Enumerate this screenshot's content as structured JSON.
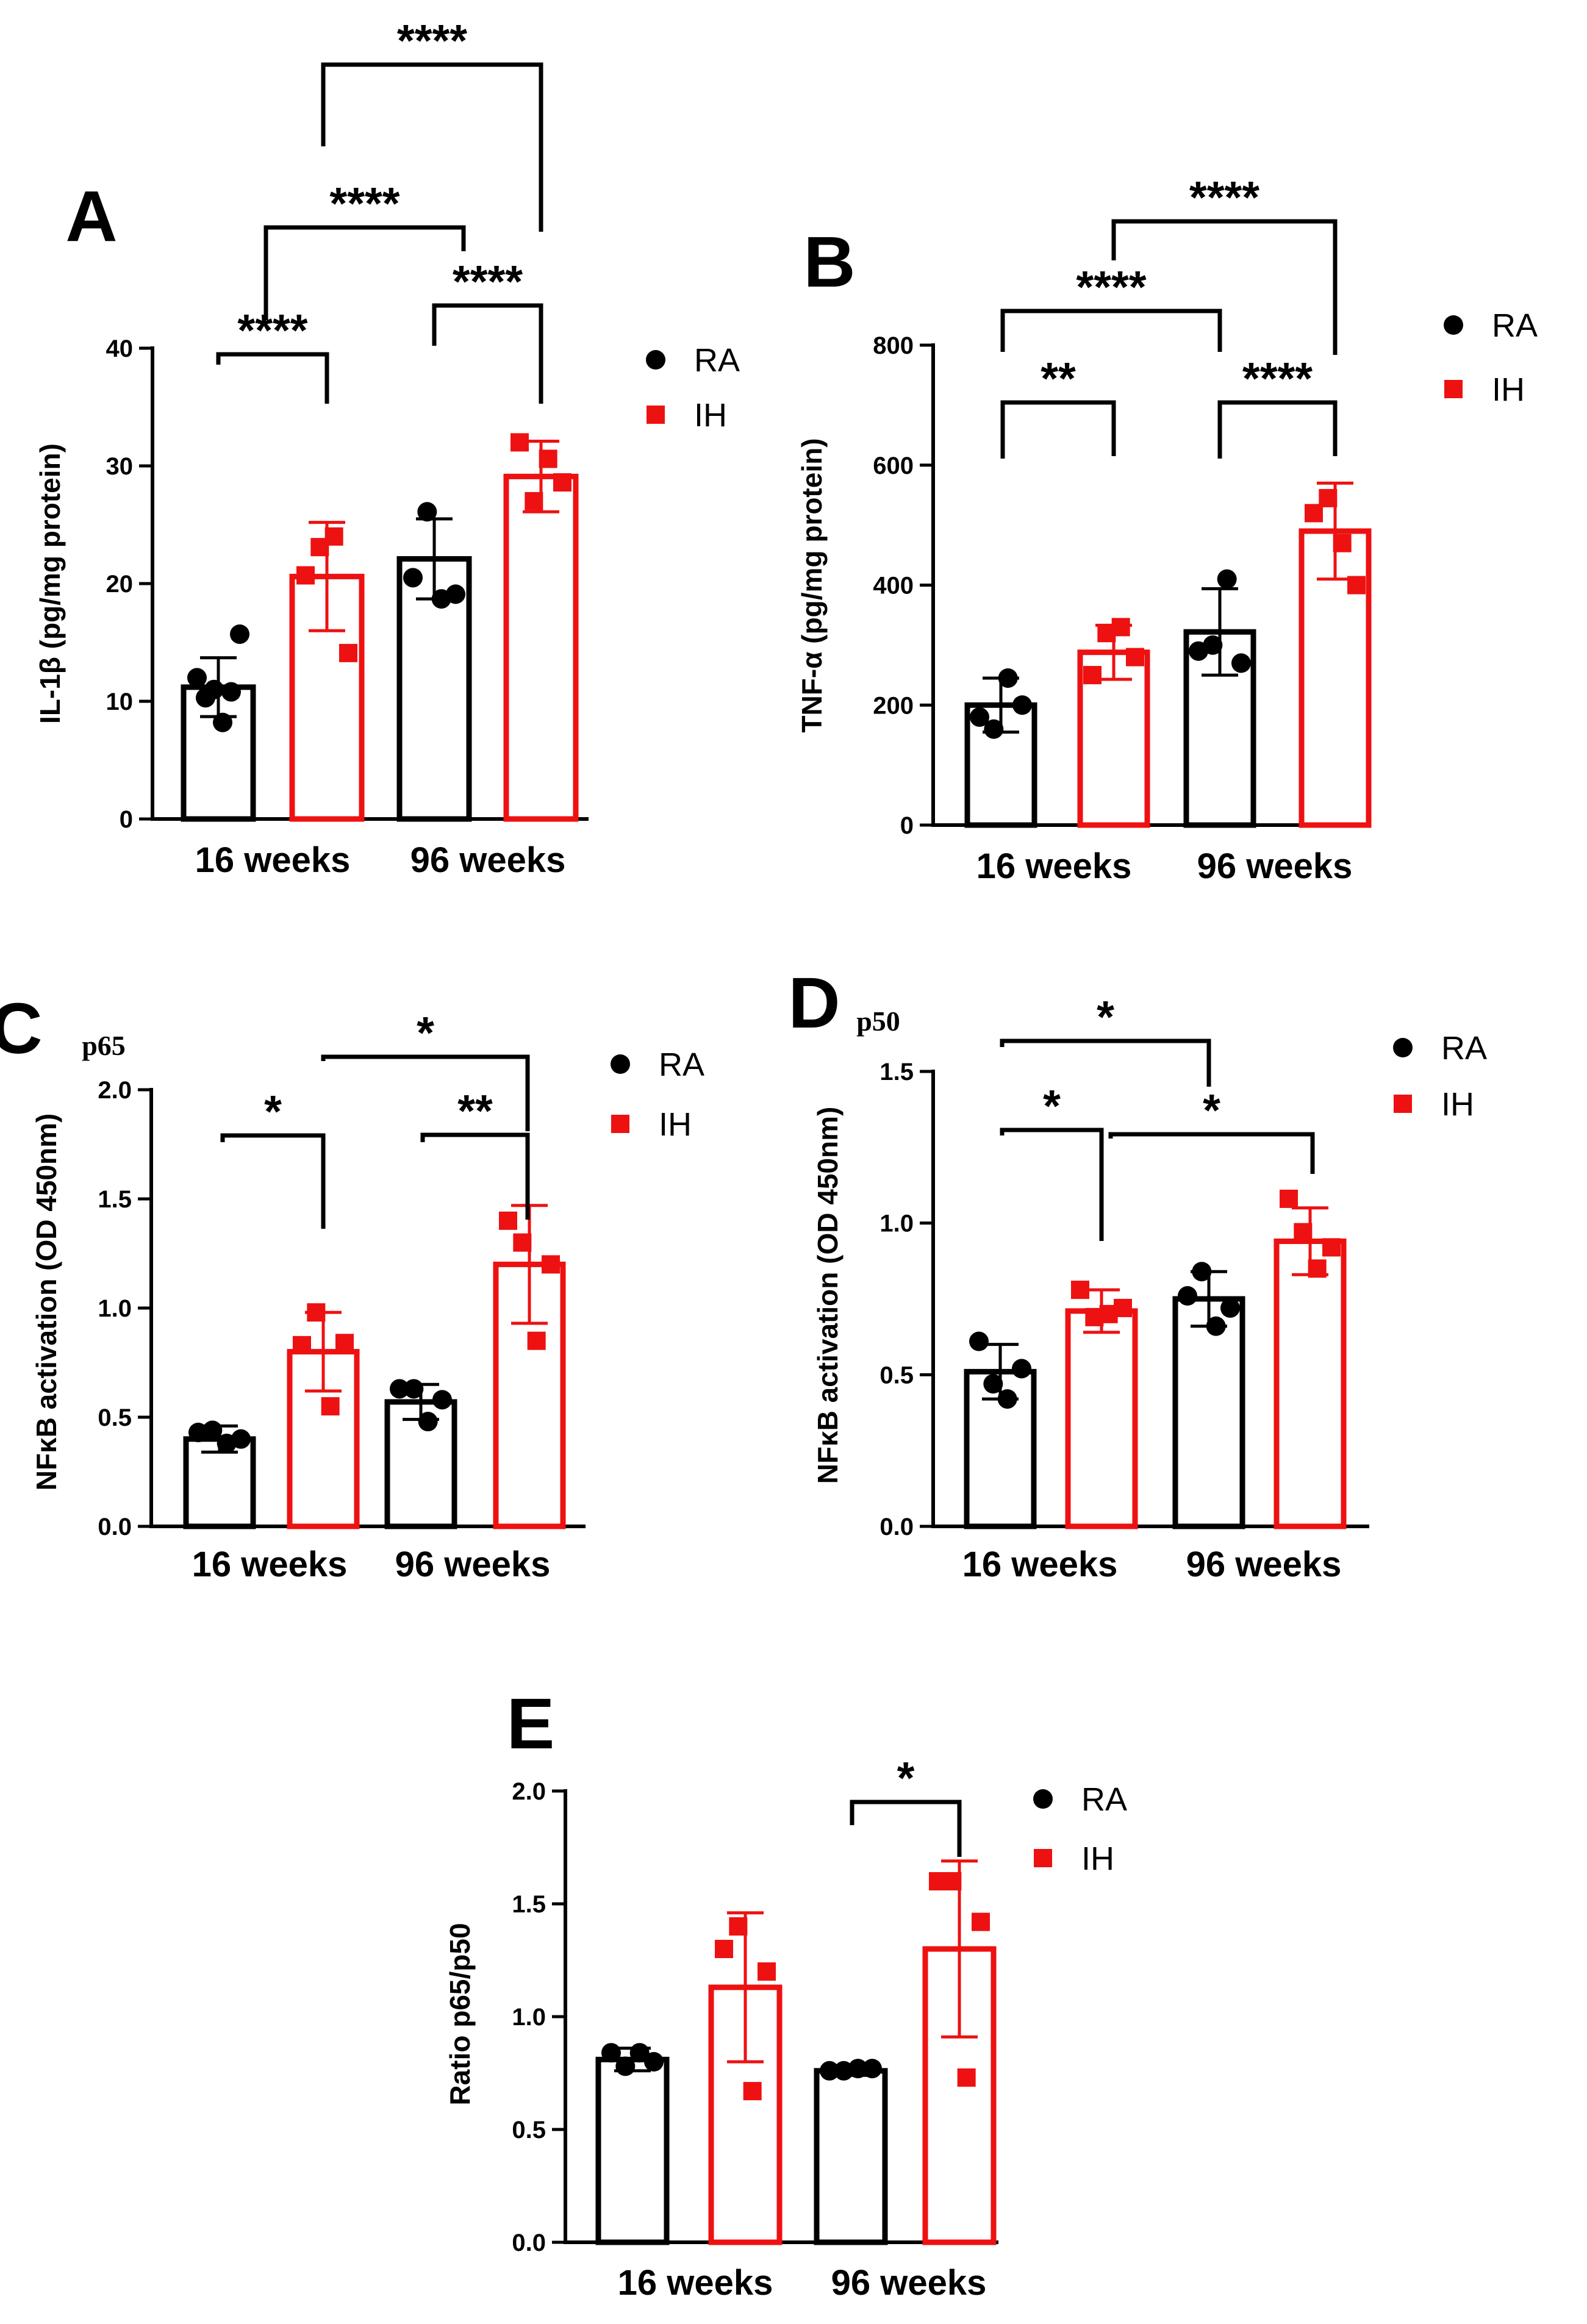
{
  "figure": {
    "legend_labels": [
      "RA",
      "IH"
    ],
    "colors": {
      "RA": "#000000",
      "IH": "#ee1111"
    }
  },
  "chart_data": [
    {
      "panel": "A",
      "type": "bar",
      "ylabel": "IL-1β (pg/mg protein)",
      "ylim": [
        0,
        40
      ],
      "yticks": [
        0,
        10,
        20,
        30,
        40
      ],
      "categories": [
        "16 weeks",
        "96 weeks"
      ],
      "legend": [
        "RA",
        "IH"
      ],
      "series": [
        {
          "name": "RA",
          "values": [
            11.2,
            22.1
          ],
          "errors": [
            2.5,
            3.4
          ],
          "points": [
            [
              12.0,
              10.3,
              11.0,
              8.2,
              10.8,
              15.7
            ],
            [
              20.5,
              26.1,
              18.7,
              19.1
            ]
          ]
        },
        {
          "name": "IH",
          "values": [
            20.6,
            29.1
          ],
          "errors": [
            4.6,
            3.0
          ],
          "points": [
            [
              20.7,
              23.1,
              24.0,
              14.1
            ],
            [
              32.0,
              27.0,
              30.6,
              28.6
            ]
          ]
        }
      ],
      "comparisons": [
        {
          "from": "16 weeks RA",
          "to": "16 weeks IH",
          "label": "****"
        },
        {
          "from": "96 weeks RA",
          "to": "96 weeks IH",
          "label": "****"
        },
        {
          "from": "16 weeks RA",
          "to": "96 weeks RA",
          "label": "****"
        },
        {
          "from": "16 weeks IH",
          "to": "96 weeks IH",
          "label": "****"
        }
      ]
    },
    {
      "panel": "B",
      "type": "bar",
      "ylabel": "TNF-α (pg/mg protein)",
      "ylim": [
        0,
        800
      ],
      "yticks": [
        0,
        200,
        400,
        600,
        800
      ],
      "categories": [
        "16 weeks",
        "96 weeks"
      ],
      "legend": [
        "RA",
        "IH"
      ],
      "series": [
        {
          "name": "RA",
          "values": [
            200,
            322
          ],
          "errors": [
            45,
            72
          ],
          "points": [
            [
              180,
              160,
              245,
              200
            ],
            [
              290,
              300,
              410,
              270
            ]
          ]
        },
        {
          "name": "IH",
          "values": [
            288,
            490
          ],
          "errors": [
            45,
            80
          ],
          "points": [
            [
              250,
              320,
              330,
              280
            ],
            [
              520,
              545,
              470,
              400
            ]
          ]
        }
      ],
      "comparisons": [
        {
          "from": "16 weeks RA",
          "to": "16 weeks IH",
          "label": "**"
        },
        {
          "from": "96 weeks RA",
          "to": "96 weeks IH",
          "label": "****"
        },
        {
          "from": "16 weeks RA",
          "to": "96 weeks RA",
          "label": "****"
        },
        {
          "from": "16 weeks IH",
          "to": "96 weeks IH",
          "label": "****"
        }
      ]
    },
    {
      "panel": "C",
      "type": "bar",
      "subtitle": "p65",
      "ylabel": "NFκB activation (OD 450nm)",
      "ylim": [
        0,
        2.0
      ],
      "yticks": [
        "0.0",
        "0.5",
        "1.0",
        "1.5",
        "2.0"
      ],
      "categories": [
        "16 weeks",
        "96 weeks"
      ],
      "legend": [
        "RA",
        "IH"
      ],
      "series": [
        {
          "name": "RA",
          "values": [
            0.4,
            0.57
          ],
          "errors": [
            0.06,
            0.08
          ],
          "points": [
            [
              0.43,
              0.44,
              0.38,
              0.4
            ],
            [
              0.63,
              0.63,
              0.48,
              0.58
            ]
          ]
        },
        {
          "name": "IH",
          "values": [
            0.8,
            1.2
          ],
          "errors": [
            0.18,
            0.27
          ],
          "points": [
            [
              0.83,
              0.98,
              0.55,
              0.84
            ],
            [
              1.4,
              1.3,
              0.85,
              1.2
            ]
          ]
        }
      ],
      "comparisons": [
        {
          "from": "16 weeks RA",
          "to": "16 weeks IH",
          "label": "*"
        },
        {
          "from": "96 weeks RA",
          "to": "96 weeks IH",
          "label": "**"
        },
        {
          "from": "16 weeks IH",
          "to": "96 weeks IH",
          "label": "*"
        }
      ]
    },
    {
      "panel": "D",
      "type": "bar",
      "subtitle": "p50",
      "ylabel": "NFκB activation (OD 450nm)",
      "ylim": [
        0,
        1.5
      ],
      "yticks": [
        "0.0",
        "0.5",
        "1.0",
        "1.5"
      ],
      "categories": [
        "16 weeks",
        "96 weeks"
      ],
      "legend": [
        "RA",
        "IH"
      ],
      "series": [
        {
          "name": "RA",
          "values": [
            0.51,
            0.75
          ],
          "errors": [
            0.09,
            0.09
          ],
          "points": [
            [
              0.61,
              0.47,
              0.42,
              0.52
            ],
            [
              0.76,
              0.84,
              0.66,
              0.72
            ]
          ]
        },
        {
          "name": "IH",
          "values": [
            0.71,
            0.94
          ],
          "errors": [
            0.07,
            0.11
          ],
          "points": [
            [
              0.78,
              0.69,
              0.7,
              0.72
            ],
            [
              1.08,
              0.97,
              0.85,
              0.92
            ]
          ]
        }
      ],
      "comparisons": [
        {
          "from": "16 weeks RA",
          "to": "16 weeks IH",
          "label": "*"
        },
        {
          "from": "16 weeks RA",
          "to": "96 weeks RA",
          "label": "*"
        },
        {
          "from": "16 weeks IH",
          "to": "96 weeks IH",
          "label": "*"
        }
      ]
    },
    {
      "panel": "E",
      "type": "bar",
      "ylabel": "Ratio p65/p50",
      "ylim": [
        0,
        2.0
      ],
      "yticks": [
        "0.0",
        "0.5",
        "1.0",
        "1.5",
        "2.0"
      ],
      "categories": [
        "16 weeks",
        "96 weeks"
      ],
      "legend": [
        "RA",
        "IH"
      ],
      "series": [
        {
          "name": "RA",
          "values": [
            0.81,
            0.76
          ],
          "errors": [
            0.05,
            0.02
          ],
          "points": [
            [
              0.84,
              0.78,
              0.84,
              0.8
            ],
            [
              0.76,
              0.76,
              0.77,
              0.77
            ]
          ]
        },
        {
          "name": "IH",
          "values": [
            1.13,
            1.3
          ],
          "errors": [
            0.33,
            0.39
          ],
          "points": [
            [
              1.3,
              1.4,
              0.67,
              1.2
            ],
            [
              1.6,
              1.6,
              0.73,
              1.42
            ]
          ]
        }
      ],
      "comparisons": [
        {
          "from": "96 weeks RA",
          "to": "96 weeks IH",
          "label": "*"
        }
      ]
    }
  ]
}
